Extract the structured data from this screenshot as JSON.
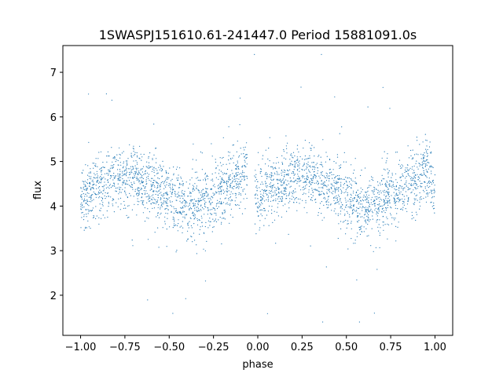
{
  "chart_data": {
    "type": "scatter",
    "title": "1SWASPJ151610.61-241447.0 Period 15881091.0s",
    "xlabel": "phase",
    "ylabel": "flux",
    "xlim": [
      -1.1,
      1.1
    ],
    "ylim": [
      1.1,
      7.6
    ],
    "x_ticks": [
      -1.0,
      -0.75,
      -0.5,
      -0.25,
      0.0,
      0.25,
      0.5,
      0.75,
      1.0
    ],
    "x_tick_labels": [
      "−1.00",
      "−0.75",
      "−0.50",
      "−0.25",
      "0.00",
      "0.25",
      "0.50",
      "0.75",
      "1.00"
    ],
    "y_ticks": [
      2,
      3,
      4,
      5,
      6,
      7
    ],
    "y_tick_labels": [
      "2",
      "3",
      "4",
      "5",
      "6",
      "7"
    ],
    "grid": false,
    "legend": "none",
    "marker_color": "#1f77b4",
    "phase_range": [
      -1.0,
      1.0
    ],
    "series": [
      {
        "profile": {
          "x": [
            -1.0,
            -0.9,
            -0.8,
            -0.7,
            -0.6,
            -0.5,
            -0.4,
            -0.3,
            -0.2,
            -0.1,
            -0.05,
            0.0
          ],
          "y": [
            4.2,
            4.4,
            4.6,
            4.7,
            4.45,
            4.2,
            3.95,
            4.1,
            4.35,
            4.6,
            4.9,
            4.25
          ]
        },
        "scatter_sigma": 0.35,
        "min_flux": 1.4,
        "max_flux": 7.4
      }
    ]
  }
}
